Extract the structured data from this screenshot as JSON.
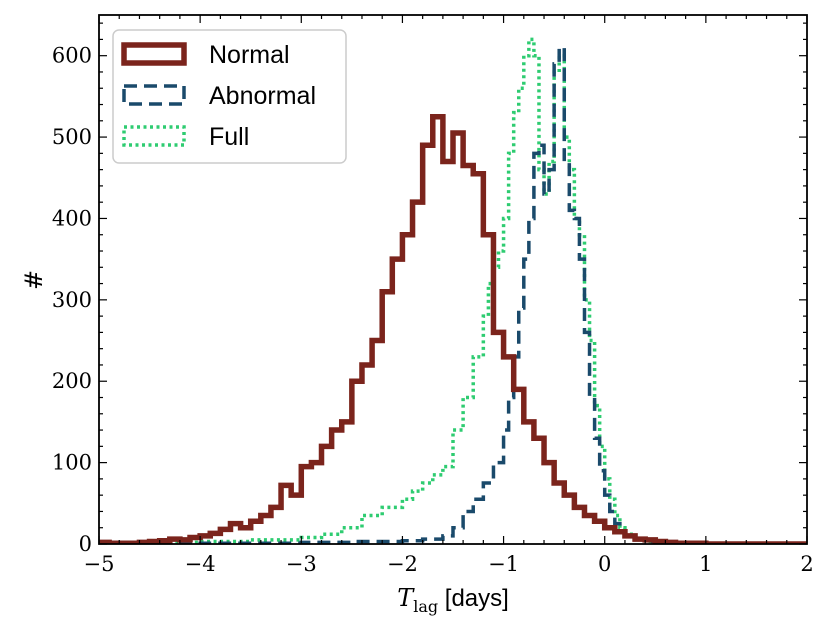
{
  "chart_data": {
    "type": "histogram-step",
    "title": "",
    "xlabel": {
      "symbol": "T",
      "subscript": "lag",
      "unit": " [days]"
    },
    "ylabel": "#",
    "xlim": [
      -5,
      2
    ],
    "ylim": [
      0,
      650
    ],
    "x_ticks": [
      -5,
      -4,
      -3,
      -2,
      -1,
      0,
      1,
      2
    ],
    "x_tick_labels": [
      "−5",
      "−4",
      "−3",
      "−2",
      "−1",
      "0",
      "1",
      "2"
    ],
    "y_ticks": [
      0,
      100,
      200,
      300,
      400,
      500,
      600
    ],
    "y_tick_labels": [
      "0",
      "100",
      "200",
      "300",
      "400",
      "500",
      "600"
    ],
    "x_minor_step": 0.2,
    "y_minor_step": 20,
    "grid": false,
    "legend_position": "top-left",
    "series": [
      {
        "name": "Normal",
        "color": "#7b241c",
        "style": "solid",
        "edges": [
          -5.0,
          -4.9,
          -4.8,
          -4.7,
          -4.6,
          -4.5,
          -4.4,
          -4.3,
          -4.2,
          -4.1,
          -4.0,
          -3.9,
          -3.8,
          -3.7,
          -3.6,
          -3.5,
          -3.4,
          -3.3,
          -3.2,
          -3.1,
          -3.0,
          -2.9,
          -2.8,
          -2.7,
          -2.6,
          -2.5,
          -2.4,
          -2.3,
          -2.2,
          -2.1,
          -2.0,
          -1.9,
          -1.8,
          -1.7,
          -1.6,
          -1.5,
          -1.4,
          -1.3,
          -1.2,
          -1.1,
          -1.0,
          -0.9,
          -0.8,
          -0.7,
          -0.6,
          -0.5,
          -0.4,
          -0.3,
          -0.2,
          -0.1,
          0.0,
          0.1,
          0.2,
          0.3,
          0.4,
          0.5,
          0.6,
          0.7,
          0.8,
          0.9,
          1.0,
          1.1,
          1.2,
          1.3,
          1.4,
          1.5,
          1.6,
          1.7,
          1.8,
          1.9,
          2.0
        ],
        "counts": [
          2,
          1,
          1,
          1,
          2,
          3,
          4,
          6,
          5,
          8,
          10,
          13,
          18,
          25,
          20,
          28,
          35,
          45,
          72,
          60,
          95,
          100,
          120,
          140,
          150,
          200,
          220,
          250,
          310,
          350,
          380,
          420,
          490,
          525,
          470,
          505,
          465,
          455,
          380,
          260,
          230,
          190,
          150,
          130,
          100,
          75,
          60,
          45,
          35,
          28,
          20,
          15,
          10,
          6,
          5,
          3,
          2,
          1,
          1,
          1,
          0,
          0,
          0,
          0,
          0,
          0,
          0,
          0,
          0,
          0
        ]
      },
      {
        "name": "Abnormal",
        "color": "#1a4a6b",
        "style": "dashed",
        "edges": [
          -5.0,
          -4.0,
          -3.0,
          -2.5,
          -2.0,
          -1.8,
          -1.6,
          -1.5,
          -1.4,
          -1.3,
          -1.2,
          -1.1,
          -1.0,
          -0.95,
          -0.9,
          -0.85,
          -0.8,
          -0.75,
          -0.7,
          -0.65,
          -0.6,
          -0.55,
          -0.5,
          -0.45,
          -0.4,
          -0.35,
          -0.3,
          -0.25,
          -0.2,
          -0.15,
          -0.1,
          -0.05,
          0.0,
          0.05,
          0.1,
          0.15,
          0.2,
          0.3,
          0.4,
          0.5,
          0.7,
          1.0,
          2.0
        ],
        "counts": [
          0,
          1,
          2,
          3,
          4,
          6,
          10,
          20,
          40,
          55,
          75,
          100,
          140,
          180,
          230,
          290,
          350,
          400,
          480,
          490,
          430,
          460,
          590,
          610,
          470,
          410,
          400,
          350,
          260,
          180,
          130,
          90,
          60,
          40,
          25,
          15,
          10,
          5,
          3,
          1,
          0,
          0
        ]
      },
      {
        "name": "Full",
        "color": "#2ecc71",
        "style": "dotted",
        "edges": [
          -5.0,
          -4.5,
          -4.0,
          -3.5,
          -3.0,
          -2.8,
          -2.6,
          -2.4,
          -2.2,
          -2.0,
          -1.9,
          -1.8,
          -1.7,
          -1.6,
          -1.5,
          -1.4,
          -1.3,
          -1.2,
          -1.15,
          -1.1,
          -1.05,
          -1.0,
          -0.95,
          -0.9,
          -0.85,
          -0.8,
          -0.75,
          -0.7,
          -0.65,
          -0.6,
          -0.55,
          -0.5,
          -0.45,
          -0.4,
          -0.35,
          -0.3,
          -0.25,
          -0.2,
          -0.15,
          -0.1,
          -0.05,
          0.0,
          0.05,
          0.1,
          0.15,
          0.2,
          0.3,
          0.4,
          0.5,
          0.7,
          1.0,
          2.0
        ],
        "counts": [
          1,
          2,
          3,
          5,
          8,
          12,
          20,
          35,
          45,
          55,
          65,
          75,
          85,
          95,
          140,
          180,
          230,
          280,
          320,
          340,
          360,
          400,
          480,
          530,
          560,
          600,
          620,
          600,
          460,
          430,
          470,
          580,
          600,
          500,
          460,
          400,
          380,
          300,
          250,
          170,
          120,
          80,
          55,
          35,
          20,
          12,
          6,
          3,
          1,
          0,
          0
        ]
      }
    ]
  }
}
